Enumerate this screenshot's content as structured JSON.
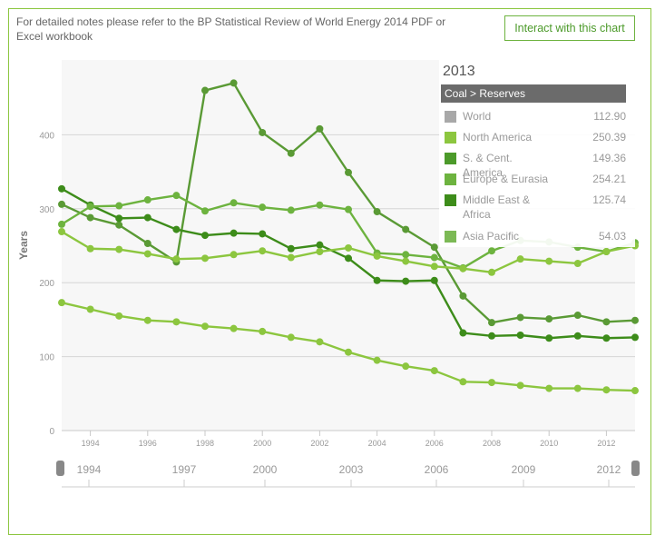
{
  "header": {
    "notes": "For detailed notes please refer to the BP Statistical Review of World Energy 2014 PDF or Excel workbook",
    "interact_label": "Interact with this chart"
  },
  "tooltip": {
    "year": "2013",
    "heading": "Coal > Reserves",
    "rows": [
      {
        "name": "World",
        "value": "112.90",
        "color": "#a8a8a8"
      },
      {
        "name": "North America",
        "value": "250.39",
        "color": "#8cc63f"
      },
      {
        "name": "S. & Cent. America",
        "value": "149.36",
        "color": "#4c9a2a"
      },
      {
        "name": "Europe & Eurasia",
        "value": "254.21",
        "color": "#6db33f"
      },
      {
        "name": "Middle East & Africa",
        "value": "125.74",
        "color": "#3d8c1a"
      },
      {
        "name": "Asia Pacific",
        "value": "54.03",
        "color": "#7cb955"
      }
    ]
  },
  "navigator": {
    "labels": [
      "1994",
      "1997",
      "2000",
      "2003",
      "2006",
      "2009",
      "2012"
    ]
  },
  "chart_data": {
    "type": "line",
    "ylabel": "Years",
    "xlim": [
      1993,
      2013
    ],
    "ylim": [
      0,
      500
    ],
    "y_ticks": [
      "0",
      "100",
      "200",
      "300",
      "400"
    ],
    "x_ticks": [
      "1994",
      "1996",
      "1998",
      "2000",
      "2002",
      "2004",
      "2006",
      "2008",
      "2010",
      "2012"
    ],
    "grid": true,
    "x": [
      1993,
      1994,
      1995,
      1996,
      1997,
      1998,
      1999,
      2000,
      2001,
      2002,
      2003,
      2004,
      2005,
      2006,
      2007,
      2008,
      2009,
      2010,
      2011,
      2012,
      2013
    ],
    "series": [
      {
        "name": "S. & Cent. America",
        "color": "#5a9a35",
        "values": [
          306,
          288,
          278,
          253,
          228,
          460,
          470,
          403,
          375,
          408,
          349,
          296,
          272,
          248,
          182,
          146,
          153,
          151,
          156,
          147,
          149
        ]
      },
      {
        "name": "Middle East & Africa",
        "color": "#3d8c1a",
        "values": [
          327,
          305,
          287,
          288,
          272,
          264,
          267,
          266,
          246,
          251,
          233,
          203,
          202,
          203,
          132,
          128,
          129,
          125,
          128,
          125,
          126
        ]
      },
      {
        "name": "Europe & Eurasia",
        "color": "#6db33f",
        "values": [
          279,
          303,
          304,
          312,
          318,
          297,
          308,
          302,
          298,
          305,
          299,
          240,
          238,
          234,
          220,
          243,
          257,
          255,
          248,
          242,
          254
        ]
      },
      {
        "name": "North America",
        "color": "#8cc63f",
        "values": [
          269,
          246,
          245,
          239,
          232,
          233,
          238,
          243,
          234,
          242,
          247,
          236,
          229,
          222,
          219,
          214,
          232,
          229,
          226,
          242,
          250
        ]
      },
      {
        "name": "Asia Pacific",
        "color": "#8cc63f",
        "values": [
          173,
          164,
          155,
          149,
          147,
          141,
          138,
          134,
          126,
          120,
          106,
          95,
          87,
          81,
          66,
          65,
          61,
          57,
          57,
          55,
          54
        ]
      }
    ]
  }
}
